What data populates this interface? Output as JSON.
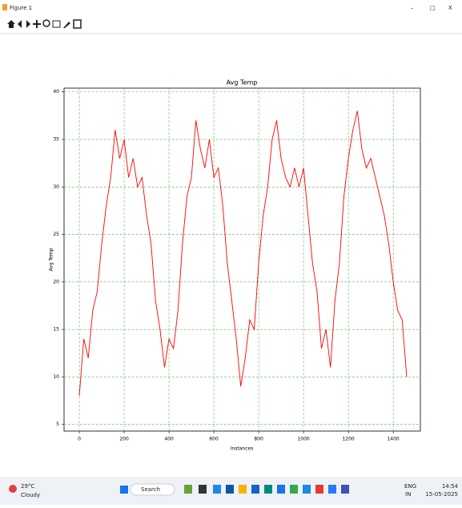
{
  "window": {
    "title": "Figure 1",
    "controls": [
      "–",
      "□",
      "X"
    ]
  },
  "taskbar": {
    "weather_temp": "29°C",
    "weather_desc": "Cloudy",
    "search": "Search",
    "language": "ENG",
    "region": "IN",
    "time": "14:54",
    "date": "15-05-2025"
  },
  "chart_data": {
    "type": "line",
    "title": "Avg Temp",
    "x_label": "Instances",
    "y_label": "Avg Temp",
    "x": [
      0,
      20,
      40,
      60,
      80,
      100,
      120,
      140,
      160,
      180,
      200,
      220,
      240,
      260,
      280,
      300,
      320,
      340,
      360,
      380,
      400,
      420,
      440,
      460,
      480,
      500,
      520,
      540,
      560,
      580,
      600,
      620,
      640,
      660,
      680,
      700,
      720,
      740,
      760,
      780,
      800,
      820,
      840,
      860,
      880,
      900,
      920,
      940,
      960,
      980,
      1000,
      1020,
      1040,
      1060,
      1080,
      1100,
      1120,
      1140,
      1160,
      1180,
      1200,
      1220,
      1240,
      1260,
      1280,
      1300,
      1320,
      1340,
      1360,
      1380,
      1400,
      1420,
      1440,
      1460
    ],
    "values": [
      8,
      14,
      12,
      17,
      19,
      24,
      28,
      31,
      36,
      33,
      35,
      31,
      33,
      30,
      31,
      27,
      24,
      18,
      15,
      11,
      14,
      13,
      17,
      24,
      29,
      31,
      37,
      34,
      32,
      35,
      31,
      32,
      28,
      22,
      18,
      14,
      9,
      12,
      16,
      15,
      22,
      27,
      30,
      35,
      37,
      33,
      31,
      30,
      32,
      30,
      32,
      27,
      22,
      19,
      13,
      15,
      11,
      18,
      22,
      29,
      33,
      36,
      38,
      34,
      32,
      33,
      31,
      29,
      27,
      24,
      20,
      17,
      16,
      10
    ],
    "color": "#ff0000",
    "xlim": [
      -68,
      1521
    ],
    "ylim": [
      4.3,
      40.4
    ],
    "xticks": [
      0,
      200,
      400,
      600,
      800,
      1000,
      1200,
      1400
    ],
    "yticks": [
      5,
      10,
      15,
      20,
      25,
      30,
      35,
      40
    ],
    "grid": true,
    "grid_color": "#5cb85c"
  }
}
